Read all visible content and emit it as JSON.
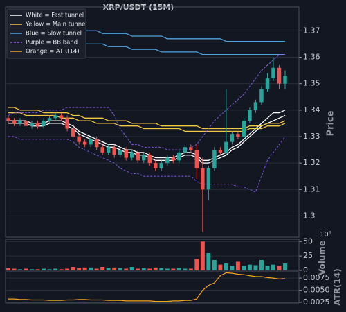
{
  "chart_data": {
    "type": "candlestick",
    "title": "XRP/USDT (15M)",
    "ylabel": "Price",
    "grid": true,
    "legend": "upper left",
    "up_color": "#26a69a",
    "down_color": "#ef5350",
    "ylim": [
      1.292,
      1.379
    ],
    "yticks": [
      1.3,
      1.31,
      1.32,
      1.33,
      1.34,
      1.35,
      1.36,
      1.37
    ],
    "open": [
      1.337,
      1.336,
      1.335,
      1.336,
      1.334,
      1.335,
      1.334,
      1.336,
      1.337,
      1.338,
      1.337,
      1.333,
      1.33,
      1.328,
      1.327,
      1.329,
      1.326,
      1.324,
      1.326,
      1.323,
      1.325,
      1.322,
      1.324,
      1.321,
      1.323,
      1.32,
      1.318,
      1.32,
      1.322,
      1.321,
      1.324,
      1.326,
      1.325,
      1.318,
      1.31,
      1.318,
      1.325,
      1.324,
      1.328,
      1.331,
      1.33,
      1.336,
      1.34,
      1.343,
      1.348,
      1.352,
      1.356,
      1.35
    ],
    "high": [
      1.338,
      1.337,
      1.337,
      1.337,
      1.336,
      1.336,
      1.337,
      1.338,
      1.339,
      1.339,
      1.338,
      1.334,
      1.331,
      1.329,
      1.33,
      1.33,
      1.327,
      1.327,
      1.327,
      1.326,
      1.326,
      1.325,
      1.325,
      1.324,
      1.324,
      1.321,
      1.321,
      1.323,
      1.323,
      1.325,
      1.327,
      1.327,
      1.327,
      1.322,
      1.319,
      1.326,
      1.326,
      1.348,
      1.332,
      1.332,
      1.337,
      1.341,
      1.344,
      1.349,
      1.354,
      1.36,
      1.357,
      1.355
    ],
    "low": [
      1.335,
      1.334,
      1.334,
      1.333,
      1.333,
      1.333,
      1.333,
      1.335,
      1.336,
      1.336,
      1.332,
      1.329,
      1.327,
      1.326,
      1.326,
      1.325,
      1.323,
      1.323,
      1.322,
      1.322,
      1.321,
      1.321,
      1.32,
      1.32,
      1.319,
      1.317,
      1.317,
      1.319,
      1.32,
      1.32,
      1.323,
      1.324,
      1.314,
      1.294,
      1.306,
      1.317,
      1.323,
      1.323,
      1.327,
      1.329,
      1.329,
      1.335,
      1.339,
      1.342,
      1.347,
      1.351,
      1.348,
      1.348
    ],
    "close": [
      1.336,
      1.335,
      1.336,
      1.334,
      1.335,
      1.334,
      1.336,
      1.337,
      1.338,
      1.337,
      1.333,
      1.33,
      1.328,
      1.327,
      1.329,
      1.326,
      1.324,
      1.326,
      1.323,
      1.325,
      1.322,
      1.324,
      1.321,
      1.323,
      1.32,
      1.318,
      1.32,
      1.322,
      1.321,
      1.324,
      1.326,
      1.325,
      1.318,
      1.31,
      1.318,
      1.325,
      1.324,
      1.328,
      1.331,
      1.33,
      1.336,
      1.34,
      1.343,
      1.348,
      1.352,
      1.356,
      1.35,
      1.353
    ],
    "lines": [
      {
        "name": "White = Fast tunnel",
        "color": "#ffffff",
        "dashed": false,
        "upper": [
          1.336,
          1.336,
          1.336,
          1.336,
          1.335,
          1.335,
          1.335,
          1.336,
          1.336,
          1.336,
          1.335,
          1.334,
          1.332,
          1.331,
          1.33,
          1.329,
          1.328,
          1.327,
          1.327,
          1.326,
          1.325,
          1.325,
          1.324,
          1.324,
          1.323,
          1.322,
          1.322,
          1.322,
          1.322,
          1.323,
          1.324,
          1.324,
          1.323,
          1.321,
          1.321,
          1.322,
          1.323,
          1.324,
          1.326,
          1.327,
          1.329,
          1.331,
          1.333,
          1.335,
          1.337,
          1.339,
          1.339,
          1.34
        ],
        "lower": [
          1.335,
          1.335,
          1.335,
          1.335,
          1.334,
          1.334,
          1.334,
          1.335,
          1.335,
          1.335,
          1.334,
          1.333,
          1.331,
          1.33,
          1.329,
          1.328,
          1.327,
          1.326,
          1.326,
          1.325,
          1.324,
          1.324,
          1.323,
          1.323,
          1.322,
          1.321,
          1.321,
          1.321,
          1.321,
          1.322,
          1.323,
          1.323,
          1.322,
          1.32,
          1.32,
          1.321,
          1.322,
          1.323,
          1.325,
          1.326,
          1.328,
          1.33,
          1.332,
          1.334,
          1.335,
          1.336,
          1.337,
          1.338
        ]
      },
      {
        "name": "Yellow = Main tunnel",
        "color": "#f2c744",
        "dashed": false,
        "upper": [
          1.341,
          1.341,
          1.34,
          1.34,
          1.34,
          1.34,
          1.339,
          1.339,
          1.339,
          1.339,
          1.339,
          1.338,
          1.338,
          1.337,
          1.337,
          1.337,
          1.337,
          1.336,
          1.336,
          1.336,
          1.336,
          1.335,
          1.335,
          1.335,
          1.335,
          1.335,
          1.334,
          1.334,
          1.334,
          1.334,
          1.334,
          1.334,
          1.334,
          1.333,
          1.333,
          1.333,
          1.333,
          1.333,
          1.333,
          1.333,
          1.333,
          1.334,
          1.334,
          1.334,
          1.335,
          1.335,
          1.335,
          1.336
        ],
        "lower": [
          1.339,
          1.339,
          1.339,
          1.338,
          1.338,
          1.338,
          1.338,
          1.338,
          1.338,
          1.337,
          1.337,
          1.337,
          1.336,
          1.336,
          1.336,
          1.335,
          1.335,
          1.335,
          1.335,
          1.334,
          1.334,
          1.334,
          1.334,
          1.333,
          1.333,
          1.333,
          1.333,
          1.333,
          1.333,
          1.333,
          1.332,
          1.332,
          1.332,
          1.332,
          1.332,
          1.332,
          1.332,
          1.332,
          1.332,
          1.332,
          1.332,
          1.333,
          1.333,
          1.333,
          1.334,
          1.334,
          1.334,
          1.335
        ]
      },
      {
        "name": "Blue = Slow tunnel",
        "color": "#4fa3e0",
        "dashed": false,
        "upper": [
          1.374,
          1.374,
          1.373,
          1.373,
          1.373,
          1.372,
          1.372,
          1.372,
          1.371,
          1.371,
          1.371,
          1.371,
          1.37,
          1.37,
          1.37,
          1.37,
          1.369,
          1.369,
          1.369,
          1.369,
          1.369,
          1.368,
          1.368,
          1.368,
          1.368,
          1.368,
          1.368,
          1.367,
          1.367,
          1.367,
          1.367,
          1.367,
          1.367,
          1.367,
          1.367,
          1.367,
          1.367,
          1.366,
          1.366,
          1.366,
          1.366,
          1.366,
          1.366,
          1.366,
          1.366,
          1.366,
          1.366,
          1.366
        ],
        "lower": [
          1.37,
          1.37,
          1.369,
          1.369,
          1.368,
          1.368,
          1.368,
          1.367,
          1.367,
          1.367,
          1.366,
          1.366,
          1.366,
          1.365,
          1.365,
          1.365,
          1.365,
          1.364,
          1.364,
          1.364,
          1.364,
          1.363,
          1.363,
          1.363,
          1.363,
          1.363,
          1.362,
          1.362,
          1.362,
          1.362,
          1.362,
          1.362,
          1.362,
          1.361,
          1.361,
          1.361,
          1.361,
          1.361,
          1.361,
          1.361,
          1.361,
          1.361,
          1.361,
          1.361,
          1.361,
          1.361,
          1.361,
          1.361
        ]
      },
      {
        "name": "Purple = BB band",
        "color": "#8b5cf6",
        "dashed": true,
        "upper": [
          1.338,
          1.339,
          1.339,
          1.339,
          1.339,
          1.339,
          1.34,
          1.34,
          1.34,
          1.34,
          1.341,
          1.341,
          1.341,
          1.341,
          1.341,
          1.341,
          1.341,
          1.341,
          1.338,
          1.333,
          1.33,
          1.327,
          1.327,
          1.326,
          1.326,
          1.326,
          1.326,
          1.325,
          1.325,
          1.325,
          1.325,
          1.326,
          1.327,
          1.33,
          1.333,
          1.336,
          1.338,
          1.34,
          1.342,
          1.344,
          1.346,
          1.349,
          1.352,
          1.355,
          1.357,
          1.359,
          1.361,
          1.361
        ],
        "lower": [
          1.33,
          1.33,
          1.329,
          1.329,
          1.329,
          1.329,
          1.329,
          1.329,
          1.329,
          1.329,
          1.329,
          1.328,
          1.326,
          1.325,
          1.324,
          1.323,
          1.322,
          1.321,
          1.32,
          1.318,
          1.317,
          1.316,
          1.316,
          1.315,
          1.315,
          1.315,
          1.315,
          1.315,
          1.315,
          1.315,
          1.315,
          1.315,
          1.313,
          1.312,
          1.312,
          1.312,
          1.312,
          1.312,
          1.312,
          1.311,
          1.311,
          1.31,
          1.309,
          1.315,
          1.321,
          1.324,
          1.327,
          1.33
        ]
      }
    ],
    "volume": {
      "ylabel": "Volume",
      "offset_label": "10⁶",
      "ylim": [
        0,
        54
      ],
      "yticks": [
        0,
        25,
        50
      ],
      "values": [
        4,
        3,
        2,
        3,
        2,
        2,
        3,
        2,
        3,
        2,
        3,
        6,
        4,
        5,
        5,
        3,
        6,
        4,
        5,
        4,
        3,
        6,
        3,
        4,
        3,
        5,
        4,
        3,
        3,
        4,
        3,
        3,
        20,
        50,
        30,
        18,
        10,
        12,
        8,
        15,
        8,
        10,
        9,
        18,
        8,
        10,
        8,
        12
      ]
    },
    "atr": {
      "name": "Orange = ATR(14)",
      "ylabel": "ATR(14)",
      "color": "#f5a623",
      "ylim": [
        0.00235,
        0.0088
      ],
      "yticks": [
        0.0025,
        {
          "value": 0.005,
          "label": "0.0050"
        },
        0.0075
      ],
      "values": [
        0.0032,
        0.0032,
        0.0031,
        0.0031,
        0.003,
        0.003,
        0.003,
        0.0029,
        0.0029,
        0.0029,
        0.003,
        0.003,
        0.0031,
        0.0031,
        0.003,
        0.003,
        0.003,
        0.0029,
        0.0029,
        0.0029,
        0.0028,
        0.0028,
        0.0028,
        0.0028,
        0.0028,
        0.0027,
        0.0027,
        0.0027,
        0.0028,
        0.0028,
        0.0029,
        0.0029,
        0.0032,
        0.005,
        0.006,
        0.0065,
        0.008,
        0.0086,
        0.0085,
        0.0083,
        0.0082,
        0.008,
        0.0078,
        0.0078,
        0.0076,
        0.0075,
        0.0073,
        0.0074
      ]
    }
  }
}
